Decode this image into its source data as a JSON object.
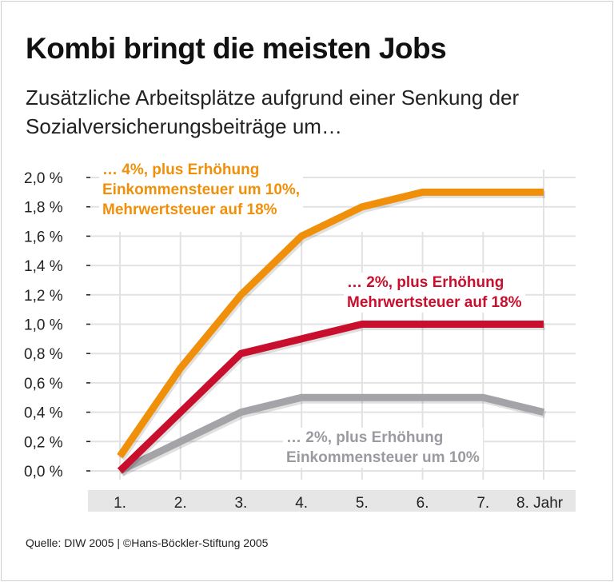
{
  "title": "Kombi bringt die meisten Jobs",
  "subtitle": "Zusätzliche Arbeitsplätze aufgrund einer Senkung der Sozialversicherungsbeiträge um…",
  "footer": "Quelle: DIW 2005 | ©Hans-Böckler-Stiftung 2005",
  "chart_data": {
    "type": "line",
    "categories": [
      "1.",
      "2.",
      "3.",
      "4.",
      "5.",
      "6.",
      "7.",
      "8. Jahr"
    ],
    "y_tick_labels": [
      "0,0 %",
      "0,2 %",
      "0,4 %",
      "0,6 %",
      "0,8 %",
      "1,0 %",
      "1,2 %",
      "1,4 %",
      "1,6 %",
      "1,8 %",
      "2,0 %"
    ],
    "ylim": [
      0,
      2.0
    ],
    "grid": true,
    "series": [
      {
        "name_lines": [
          "… 4%, plus Erhöhung",
          "Einkommensteuer  um 10%,",
          "Mehrwertsteuer auf 18%"
        ],
        "color": "#f0900a",
        "values": [
          0.1,
          0.7,
          1.2,
          1.6,
          1.8,
          1.9,
          1.9,
          1.9
        ]
      },
      {
        "name_lines": [
          "… 2%, plus Erhöhung",
          "Mehrwertsteuer auf 18%"
        ],
        "color": "#c8102e",
        "values": [
          0.0,
          0.4,
          0.8,
          0.9,
          1.0,
          1.0,
          1.0,
          1.0
        ]
      },
      {
        "name_lines": [
          "… 2%, plus Erhöhung",
          "Einkommensteuer um 10%"
        ],
        "color": "#a3a3a8",
        "values": [
          0.0,
          0.2,
          0.4,
          0.5,
          0.5,
          0.5,
          0.5,
          0.4
        ]
      }
    ]
  }
}
